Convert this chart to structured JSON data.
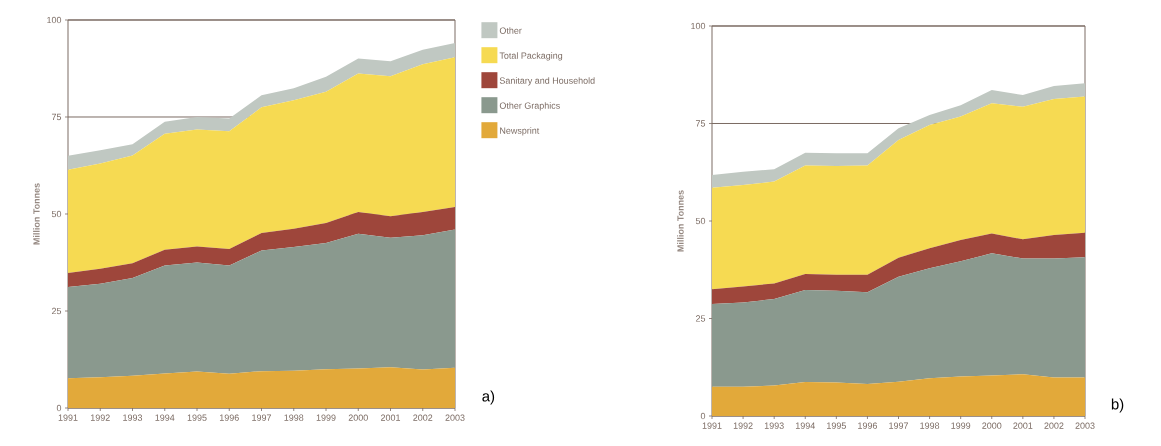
{
  "chart_data": [
    {
      "type": "area",
      "stacked": true,
      "ylabel": "Million Tonnes",
      "categories": [
        "1991",
        "1992",
        "1993",
        "1994",
        "1995",
        "1996",
        "1997",
        "1998",
        "1999",
        "2000",
        "2001",
        "2002",
        "2003"
      ],
      "ylim": [
        0,
        100
      ],
      "yticks": [
        0,
        25,
        50,
        75,
        100
      ],
      "grid": "y",
      "legend": "right",
      "annotations": [
        "a)"
      ],
      "series": [
        {
          "name": "Newsprint",
          "color": "#e2a93a",
          "values": [
            7.7,
            7.9,
            8.3,
            8.9,
            9.4,
            8.8,
            9.5,
            9.6,
            10.0,
            10.2,
            10.5,
            9.9,
            10.4
          ]
        },
        {
          "name": "Other Graphics",
          "color": "#8a998e",
          "values": [
            23.5,
            24.1,
            25.2,
            27.8,
            28.1,
            27.9,
            31.1,
            31.9,
            32.5,
            34.7,
            33.4,
            34.6,
            35.6
          ]
        },
        {
          "name": "Sanitary and Household",
          "color": "#9e463b",
          "values": [
            3.6,
            3.9,
            3.8,
            4.1,
            4.1,
            4.3,
            4.5,
            4.7,
            5.2,
            5.6,
            5.5,
            6.0,
            5.8
          ]
        },
        {
          "name": "Total Packaging",
          "color": "#f6da52",
          "values": [
            26.6,
            27.1,
            27.8,
            29.9,
            30.2,
            30.3,
            32.4,
            33.1,
            33.8,
            35.7,
            36.1,
            38.1,
            38.6
          ]
        },
        {
          "name": "Other",
          "color": "#c0c8c2",
          "values": [
            3.6,
            3.4,
            2.9,
            3.1,
            3.2,
            3.3,
            3.1,
            3.1,
            3.9,
            3.9,
            3.9,
            3.7,
            3.7
          ]
        }
      ]
    },
    {
      "type": "area",
      "stacked": true,
      "ylabel": "Million Tonnes",
      "categories": [
        "1991",
        "1992",
        "1993",
        "1994",
        "1995",
        "1996",
        "1997",
        "1998",
        "1999",
        "2000",
        "2001",
        "2002",
        "2003"
      ],
      "ylim": [
        0,
        100
      ],
      "yticks": [
        0,
        25,
        50,
        75,
        100
      ],
      "grid": "y",
      "annotations": [
        "b)"
      ],
      "series": [
        {
          "color": "#e2a93a",
          "values": [
            7.5,
            7.5,
            7.8,
            8.7,
            8.6,
            8.2,
            8.8,
            9.7,
            10.1,
            10.4,
            10.7,
            9.9,
            9.9
          ]
        },
        {
          "color": "#8a998e",
          "values": [
            21.2,
            21.6,
            22.2,
            23.6,
            23.5,
            23.5,
            26.9,
            28.2,
            29.6,
            31.3,
            29.7,
            30.5,
            30.8
          ]
        },
        {
          "color": "#9e463b",
          "values": [
            3.8,
            4.1,
            4.0,
            4.1,
            4.1,
            4.5,
            4.9,
            5.1,
            5.4,
            5.1,
            4.9,
            6.0,
            6.3
          ]
        },
        {
          "color": "#f6da52",
          "values": [
            26.0,
            26.0,
            26.1,
            27.8,
            27.9,
            28.0,
            30.2,
            31.6,
            31.7,
            33.4,
            34.0,
            34.9,
            34.9
          ]
        },
        {
          "color": "#c0c8c2",
          "values": [
            3.3,
            3.4,
            3.2,
            3.3,
            3.3,
            3.2,
            3.0,
            2.6,
            2.9,
            3.4,
            3.0,
            3.3,
            3.4
          ]
        }
      ]
    }
  ]
}
